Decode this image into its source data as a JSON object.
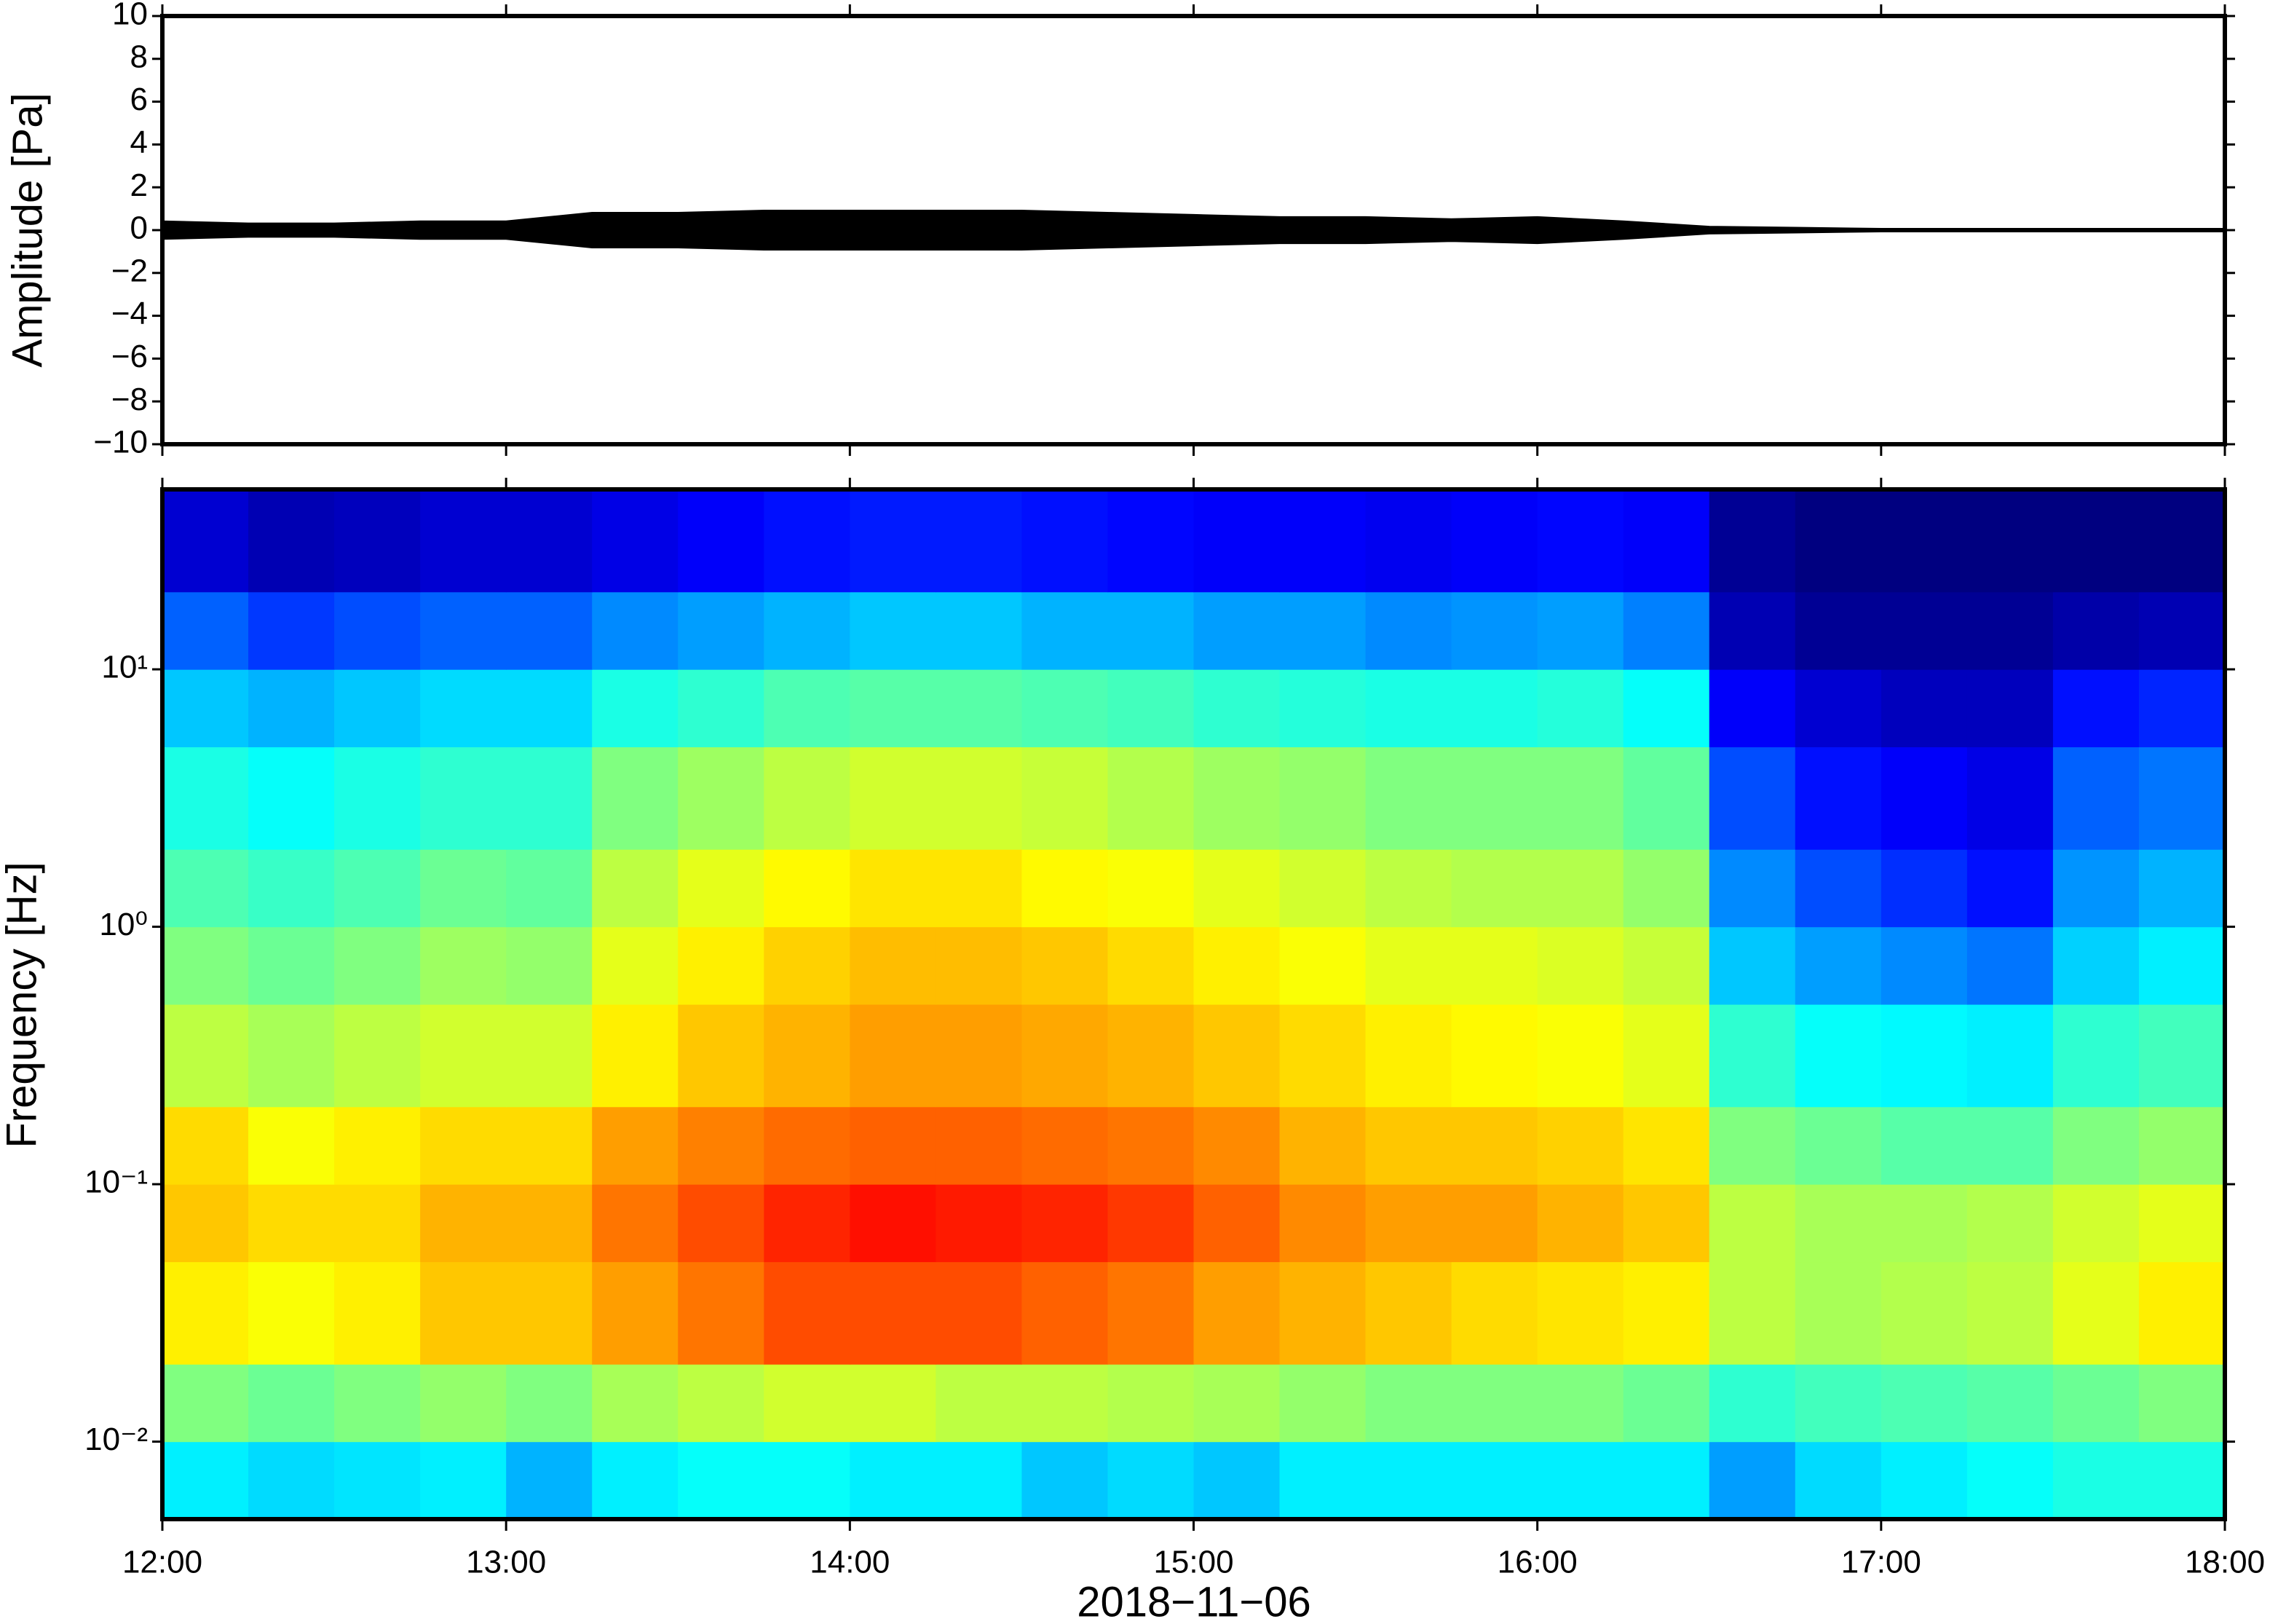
{
  "chart_data": [
    {
      "type": "envelope",
      "ylabel": "Amplitude [Pa]",
      "x": [
        12,
        12.25,
        12.5,
        12.75,
        13,
        13.25,
        13.5,
        13.75,
        14,
        14.25,
        14.5,
        14.75,
        15,
        15.25,
        15.5,
        15.75,
        16,
        16.25,
        16.5,
        16.75,
        17,
        17.25,
        17.5,
        17.75,
        18
      ],
      "upper": [
        0.4,
        0.3,
        0.3,
        0.4,
        0.4,
        0.8,
        0.8,
        0.9,
        0.9,
        0.9,
        0.9,
        0.8,
        0.7,
        0.6,
        0.6,
        0.5,
        0.6,
        0.4,
        0.15,
        0.1,
        0.05,
        0.05,
        0.05,
        0.05,
        0.05
      ],
      "lower": [
        -0.4,
        -0.3,
        -0.3,
        -0.4,
        -0.4,
        -0.8,
        -0.8,
        -0.9,
        -0.9,
        -0.9,
        -0.9,
        -0.8,
        -0.7,
        -0.6,
        -0.6,
        -0.5,
        -0.6,
        -0.4,
        -0.15,
        -0.1,
        -0.05,
        -0.05,
        -0.05,
        -0.05,
        -0.05
      ],
      "color": "#000000",
      "xlim": [
        12,
        18
      ],
      "xticks": [
        12,
        13,
        14,
        15,
        16,
        17,
        18
      ],
      "ylim": [
        -10,
        10
      ],
      "yticks": [
        {
          "value": -10,
          "label": "−10"
        },
        {
          "value": -8,
          "label": "−8"
        },
        {
          "value": -6,
          "label": "−6"
        },
        {
          "value": -4,
          "label": "−4"
        },
        {
          "value": -2,
          "label": "−2"
        },
        0,
        2,
        4,
        6,
        8,
        10
      ]
    },
    {
      "type": "heatmap",
      "ylabel": "Frequency [Hz]",
      "xlabel": "2018−11−06",
      "colormap": "jet",
      "log_y": true,
      "xlim": [
        12,
        18
      ],
      "xticks": [
        {
          "value": 12,
          "label": "12:00"
        },
        {
          "value": 13,
          "label": "13:00"
        },
        {
          "value": 14,
          "label": "14:00"
        },
        {
          "value": 15,
          "label": "15:00"
        },
        {
          "value": 16,
          "label": "16:00"
        },
        {
          "value": 17,
          "label": "17:00"
        },
        {
          "value": 18,
          "label": "18:00"
        }
      ],
      "ylim": [
        0.005,
        50
      ],
      "yticks": [
        {
          "value": 0.01,
          "label": "10⁻²"
        },
        {
          "value": 0.1,
          "label": "10⁻¹"
        },
        {
          "value": 1,
          "label": "10⁰"
        },
        {
          "value": 10,
          "label": "10¹"
        }
      ],
      "x_edges": [
        12,
        12.25,
        12.5,
        12.75,
        13,
        13.25,
        13.5,
        13.75,
        14,
        14.25,
        14.5,
        14.75,
        15,
        15.25,
        15.5,
        15.75,
        16,
        16.25,
        16.5,
        16.75,
        17,
        17.25,
        17.5,
        17.75,
        18
      ],
      "y_edges": [
        0.005,
        0.01,
        0.02,
        0.05,
        0.1,
        0.2,
        0.5,
        1,
        2,
        5,
        10,
        20,
        50
      ],
      "z": [
        [
          0.36,
          0.34,
          0.35,
          0.36,
          0.3,
          0.36,
          0.38,
          0.38,
          0.36,
          0.36,
          0.32,
          0.34,
          0.32,
          0.36,
          0.36,
          0.36,
          0.36,
          0.36,
          0.28,
          0.34,
          0.36,
          0.38,
          0.4,
          0.4
        ],
        [
          0.5,
          0.48,
          0.5,
          0.52,
          0.5,
          0.54,
          0.56,
          0.58,
          0.58,
          0.56,
          0.56,
          0.55,
          0.54,
          0.52,
          0.5,
          0.5,
          0.5,
          0.48,
          0.42,
          0.44,
          0.45,
          0.46,
          0.48,
          0.5
        ],
        [
          0.64,
          0.62,
          0.64,
          0.68,
          0.68,
          0.72,
          0.76,
          0.8,
          0.8,
          0.8,
          0.78,
          0.76,
          0.72,
          0.7,
          0.68,
          0.66,
          0.65,
          0.64,
          0.56,
          0.54,
          0.55,
          0.56,
          0.6,
          0.64
        ],
        [
          0.68,
          0.66,
          0.66,
          0.7,
          0.7,
          0.76,
          0.8,
          0.84,
          0.86,
          0.85,
          0.84,
          0.82,
          0.78,
          0.74,
          0.72,
          0.72,
          0.7,
          0.68,
          0.56,
          0.54,
          0.54,
          0.55,
          0.58,
          0.6
        ],
        [
          0.66,
          0.62,
          0.64,
          0.66,
          0.66,
          0.72,
          0.75,
          0.77,
          0.78,
          0.78,
          0.77,
          0.76,
          0.74,
          0.7,
          0.68,
          0.68,
          0.67,
          0.65,
          0.5,
          0.48,
          0.46,
          0.46,
          0.5,
          0.52
        ],
        [
          0.56,
          0.54,
          0.56,
          0.58,
          0.58,
          0.64,
          0.68,
          0.7,
          0.72,
          0.72,
          0.71,
          0.7,
          0.68,
          0.66,
          0.64,
          0.63,
          0.62,
          0.6,
          0.42,
          0.38,
          0.37,
          0.36,
          0.42,
          0.44
        ],
        [
          0.5,
          0.48,
          0.5,
          0.53,
          0.52,
          0.6,
          0.64,
          0.67,
          0.69,
          0.69,
          0.68,
          0.66,
          0.64,
          0.62,
          0.6,
          0.6,
          0.59,
          0.57,
          0.32,
          0.28,
          0.26,
          0.24,
          0.33,
          0.36
        ],
        [
          0.45,
          0.43,
          0.45,
          0.48,
          0.47,
          0.56,
          0.6,
          0.63,
          0.65,
          0.65,
          0.63,
          0.62,
          0.6,
          0.58,
          0.56,
          0.55,
          0.55,
          0.52,
          0.26,
          0.2,
          0.17,
          0.14,
          0.27,
          0.3
        ],
        [
          0.4,
          0.38,
          0.4,
          0.42,
          0.42,
          0.5,
          0.53,
          0.56,
          0.58,
          0.58,
          0.57,
          0.55,
          0.53,
          0.52,
          0.5,
          0.5,
          0.5,
          0.47,
          0.2,
          0.14,
          0.12,
          0.1,
          0.22,
          0.24
        ],
        [
          0.32,
          0.3,
          0.32,
          0.34,
          0.34,
          0.4,
          0.42,
          0.45,
          0.46,
          0.46,
          0.45,
          0.44,
          0.42,
          0.41,
          0.4,
          0.4,
          0.41,
          0.38,
          0.12,
          0.08,
          0.06,
          0.06,
          0.14,
          0.16
        ],
        [
          0.22,
          0.18,
          0.2,
          0.22,
          0.22,
          0.26,
          0.28,
          0.3,
          0.32,
          0.32,
          0.3,
          0.3,
          0.28,
          0.28,
          0.26,
          0.27,
          0.28,
          0.25,
          0.05,
          0.02,
          0.02,
          0.02,
          0.04,
          0.05
        ],
        [
          0.08,
          0.05,
          0.06,
          0.08,
          0.08,
          0.1,
          0.12,
          0.14,
          0.15,
          0.15,
          0.14,
          0.13,
          0.12,
          0.12,
          0.11,
          0.12,
          0.13,
          0.12,
          0.02,
          0,
          0,
          0,
          0,
          0
        ]
      ]
    }
  ]
}
